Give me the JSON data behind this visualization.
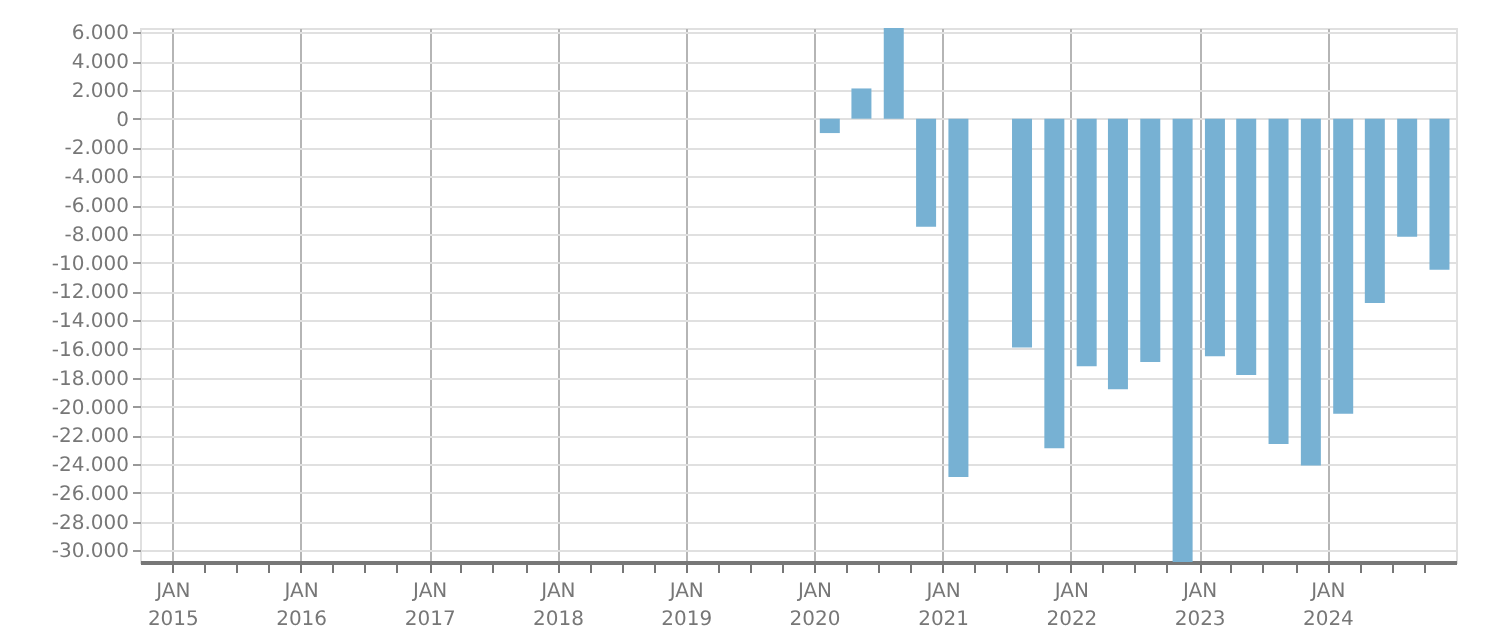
{
  "chart_data": {
    "type": "bar",
    "color": "#77b1d3",
    "x": [
      "2020-02-15",
      "2020-05-15",
      "2020-08-15",
      "2020-11-15",
      "2021-02-15",
      "2021-05-15",
      "2021-08-15",
      "2021-11-15",
      "2022-02-15",
      "2022-05-15",
      "2022-08-15",
      "2022-11-15",
      "2023-02-15",
      "2023-05-15",
      "2023-08-15",
      "2023-11-15",
      "2024-02-15",
      "2024-05-15",
      "2024-08-15",
      "2024-11-15"
    ],
    "values": [
      -1000,
      2100,
      6300,
      -7500,
      -24900,
      null,
      -15900,
      -22900,
      -17200,
      -18800,
      -16900,
      -30800,
      -16500,
      -17800,
      -22600,
      -24100,
      -20500,
      -12800,
      -8200,
      -10500
    ],
    "xlim": [
      "2014-10-01",
      "2025-01-01"
    ],
    "xticks": [
      {
        "value": "2015-01-01",
        "label": "JAN 2015"
      },
      {
        "value": "2015-04-01",
        "label": null
      },
      {
        "value": "2015-07-01",
        "label": null
      },
      {
        "value": "2015-10-01",
        "label": null
      },
      {
        "value": "2016-01-01",
        "label": "JAN 2016"
      },
      {
        "value": "2016-04-01",
        "label": null
      },
      {
        "value": "2016-07-01",
        "label": null
      },
      {
        "value": "2016-10-01",
        "label": null
      },
      {
        "value": "2017-01-01",
        "label": "JAN 2017"
      },
      {
        "value": "2017-04-01",
        "label": null
      },
      {
        "value": "2017-07-01",
        "label": null
      },
      {
        "value": "2017-10-01",
        "label": null
      },
      {
        "value": "2018-01-01",
        "label": "JAN 2018"
      },
      {
        "value": "2018-04-01",
        "label": null
      },
      {
        "value": "2018-07-01",
        "label": null
      },
      {
        "value": "2018-10-01",
        "label": null
      },
      {
        "value": "2019-01-01",
        "label": "JAN 2019"
      },
      {
        "value": "2019-04-01",
        "label": null
      },
      {
        "value": "2019-07-01",
        "label": null
      },
      {
        "value": "2019-10-01",
        "label": null
      },
      {
        "value": "2020-01-01",
        "label": "JAN 2020"
      },
      {
        "value": "2020-04-01",
        "label": null
      },
      {
        "value": "2020-07-01",
        "label": null
      },
      {
        "value": "2020-10-01",
        "label": null
      },
      {
        "value": "2021-01-01",
        "label": "JAN 2021"
      },
      {
        "value": "2021-04-01",
        "label": null
      },
      {
        "value": "2021-07-01",
        "label": null
      },
      {
        "value": "2021-10-01",
        "label": null
      },
      {
        "value": "2022-01-01",
        "label": "JAN 2022"
      },
      {
        "value": "2022-04-01",
        "label": null
      },
      {
        "value": "2022-07-01",
        "label": null
      },
      {
        "value": "2022-10-01",
        "label": null
      },
      {
        "value": "2023-01-01",
        "label": "JAN 2023"
      },
      {
        "value": "2023-04-01",
        "label": null
      },
      {
        "value": "2023-07-01",
        "label": null
      },
      {
        "value": "2023-10-01",
        "label": null
      },
      {
        "value": "2024-01-01",
        "label": "JAN 2024"
      },
      {
        "value": "2024-04-01",
        "label": null
      },
      {
        "value": "2024-07-01",
        "label": null
      },
      {
        "value": "2024-10-01",
        "label": null
      }
    ],
    "ylim": [
      -30800,
      6300
    ],
    "yticks": [
      {
        "value": 6000,
        "label": "6.000"
      },
      {
        "value": 4000,
        "label": "4.000"
      },
      {
        "value": 2000,
        "label": "2.000"
      },
      0,
      {
        "value": -2000,
        "label": "-2.000"
      },
      {
        "value": -4000,
        "label": "-4.000"
      },
      {
        "value": -6000,
        "label": "-6.000"
      },
      {
        "value": -8000,
        "label": "-8.000"
      },
      {
        "value": -10000,
        "label": "-10.000"
      },
      {
        "value": -12000,
        "label": "-12.000"
      },
      {
        "value": -14000,
        "label": "-14.000"
      },
      {
        "value": -16000,
        "label": "-16.000"
      },
      {
        "value": -18000,
        "label": "-18.000"
      },
      {
        "value": -20000,
        "label": "-20.000"
      },
      {
        "value": -22000,
        "label": "-22.000"
      },
      {
        "value": -24000,
        "label": "-24.000"
      },
      {
        "value": -26000,
        "label": "-26.000"
      },
      {
        "value": -28000,
        "label": "-28.000"
      },
      {
        "value": -30000,
        "label": "-30.000"
      }
    ],
    "grid": true
  }
}
